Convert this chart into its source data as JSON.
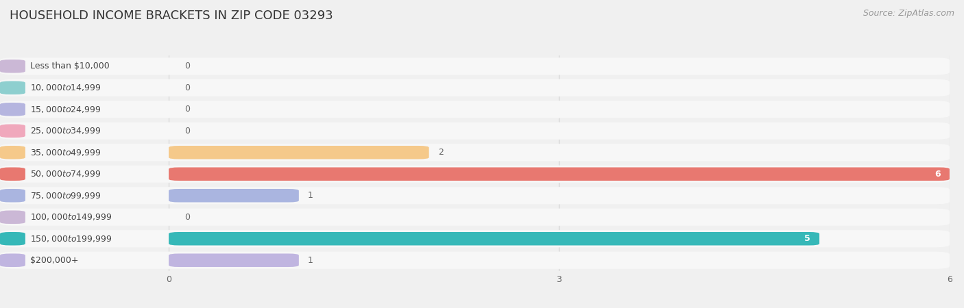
{
  "title": "HOUSEHOLD INCOME BRACKETS IN ZIP CODE 03293",
  "source": "Source: ZipAtlas.com",
  "categories": [
    "Less than $10,000",
    "$10,000 to $14,999",
    "$15,000 to $24,999",
    "$25,000 to $34,999",
    "$35,000 to $49,999",
    "$50,000 to $74,999",
    "$75,000 to $99,999",
    "$100,000 to $149,999",
    "$150,000 to $199,999",
    "$200,000+"
  ],
  "values": [
    0,
    0,
    0,
    0,
    2,
    6,
    1,
    0,
    5,
    1
  ],
  "bar_colors": [
    "#cbb8d6",
    "#8ecfcf",
    "#b5b5df",
    "#f0a8bc",
    "#f5c98a",
    "#e87870",
    "#aab5e0",
    "#cbb8d6",
    "#36b8b8",
    "#c0b5e0"
  ],
  "value_inside_color": [
    "#555555",
    "#555555",
    "#555555",
    "#555555",
    "#555555",
    "#ffffff",
    "#555555",
    "#555555",
    "#ffffff",
    "#555555"
  ],
  "xlim": [
    0,
    6
  ],
  "xticks": [
    0,
    3,
    6
  ],
  "background_color": "#f0f0f0",
  "bar_bg_color": "#e8e8e8",
  "row_bg_color": "#f7f7f7",
  "title_fontsize": 13,
  "source_fontsize": 9,
  "label_fontsize": 9,
  "value_fontsize": 9
}
